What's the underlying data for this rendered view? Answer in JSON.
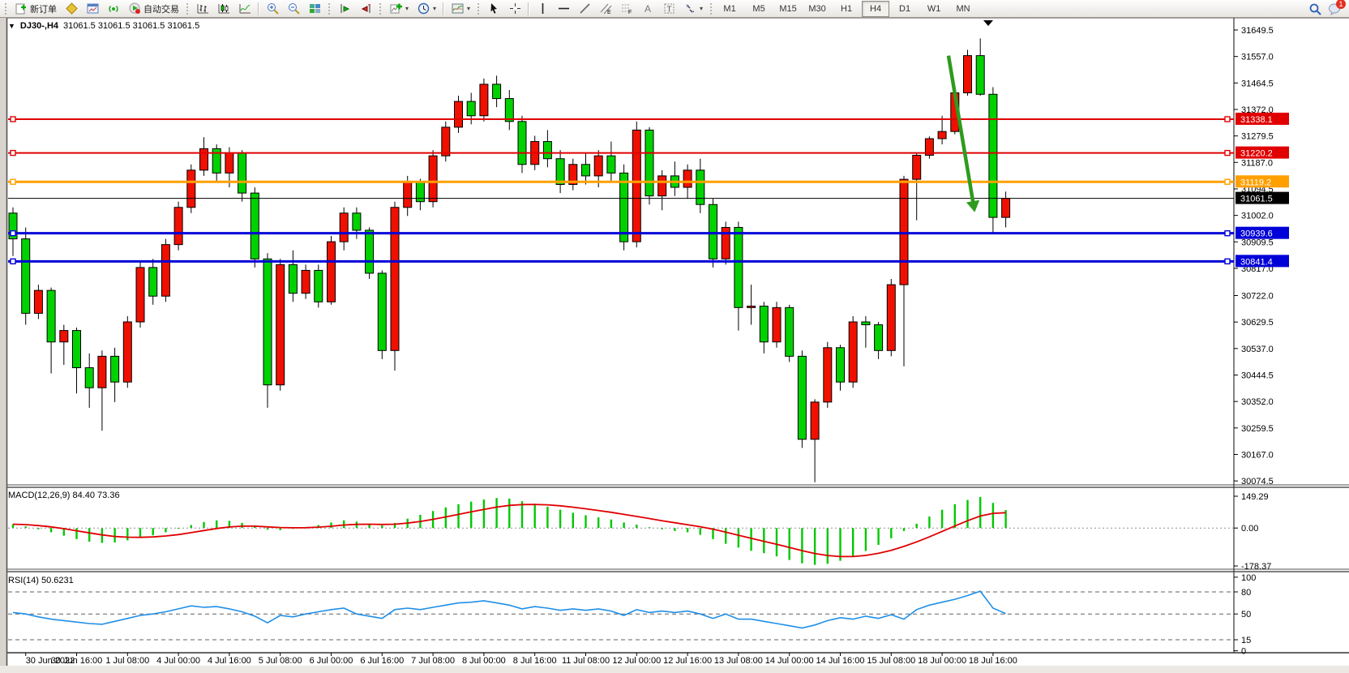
{
  "toolbar": {
    "new_order_label": "新订单",
    "auto_trading_label": "自动交易",
    "timeframes": [
      "M1",
      "M5",
      "M15",
      "M30",
      "H1",
      "H4",
      "D1",
      "W1",
      "MN"
    ],
    "active_timeframe": "H4",
    "notification_badge": "1"
  },
  "chart": {
    "symbol_title": "DJ30-,H4",
    "ohlc_readout": "31061.5 31061.5 31061.5 31061.5",
    "current_price": "31061.5",
    "price_axis_ticks": [
      "31649.5",
      "31557.0",
      "31464.5",
      "31372.0",
      "31279.5",
      "31187.0",
      "31094.5",
      "31002.0",
      "30909.5",
      "30817.0",
      "30722.0",
      "30629.5",
      "30537.0",
      "30444.5",
      "30352.0",
      "30259.5",
      "30167.0",
      "30074.5"
    ],
    "time_axis_labels": [
      "30 Jun 2022",
      "30 Jun 16:00",
      "1 Jul 08:00",
      "4 Jul 00:00",
      "4 Jul 16:00",
      "5 Jul 08:00",
      "6 Jul 00:00",
      "6 Jul 16:00",
      "7 Jul 08:00",
      "8 Jul 00:00",
      "8 Jul 16:00",
      "11 Jul 08:00",
      "12 Jul 00:00",
      "12 Jul 16:00",
      "13 Jul 08:00",
      "14 Jul 00:00",
      "14 Jul 16:00",
      "15 Jul 08:00",
      "18 Jul 00:00",
      "18 Jul 16:00"
    ],
    "horizontal_lines": [
      {
        "price": 31338.1,
        "label": "31338.1",
        "color": "#e00000",
        "width": 2
      },
      {
        "price": 31220.2,
        "label": "31220.2",
        "color": "#e00000",
        "width": 2
      },
      {
        "price": 31119.2,
        "label": "31119.2",
        "color": "#ffa000",
        "width": 3
      },
      {
        "price": 30939.6,
        "label": "30939.6",
        "color": "#0000d8",
        "width": 3
      },
      {
        "price": 30841.4,
        "label": "30841.4",
        "color": "#0000d8",
        "width": 3
      }
    ],
    "colors": {
      "up_candle": "#f01000",
      "down_candle": "#00d200",
      "macd_histogram": "#00c800",
      "macd_signal": "#e00000",
      "rsi_line": "#1f8fe8",
      "current_price_label": "#000000",
      "arrow": "#2e9b1e"
    },
    "arrow_annotation": {
      "from_bar": 73.5,
      "from_price": 31560,
      "to_bar": 75.5,
      "to_price": 31030
    }
  },
  "chart_data": {
    "type": "candlestick",
    "symbol": "DJ30-",
    "timeframe": "H4",
    "up_color": "red",
    "down_color": "green",
    "price_range": [
      30074.5,
      31649.5
    ],
    "candles": [
      [
        31010,
        31030,
        30860,
        30920
      ],
      [
        30920,
        30960,
        30620,
        30660
      ],
      [
        30660,
        30760,
        30640,
        30740
      ],
      [
        30740,
        30750,
        30450,
        30560
      ],
      [
        30560,
        30620,
        30480,
        30600
      ],
      [
        30600,
        30610,
        30380,
        30470
      ],
      [
        30470,
        30520,
        30330,
        30400
      ],
      [
        30400,
        30530,
        30250,
        30510
      ],
      [
        30510,
        30540,
        30350,
        30420
      ],
      [
        30420,
        30650,
        30400,
        30630
      ],
      [
        30630,
        30840,
        30610,
        30820
      ],
      [
        30820,
        30850,
        30690,
        30720
      ],
      [
        30720,
        30920,
        30700,
        30900
      ],
      [
        30900,
        31050,
        30880,
        31030
      ],
      [
        31030,
        31180,
        31010,
        31160
      ],
      [
        31160,
        31275,
        31140,
        31235
      ],
      [
        31235,
        31250,
        31120,
        31150
      ],
      [
        31150,
        31240,
        31100,
        31220
      ],
      [
        31220,
        31230,
        31050,
        31080
      ],
      [
        31080,
        31100,
        30820,
        30850
      ],
      [
        30850,
        30870,
        30330,
        30410
      ],
      [
        30410,
        30850,
        30390,
        30830
      ],
      [
        30830,
        30880,
        30700,
        30730
      ],
      [
        30730,
        30830,
        30710,
        30810
      ],
      [
        30810,
        30830,
        30680,
        30700
      ],
      [
        30700,
        30930,
        30690,
        30910
      ],
      [
        30910,
        31030,
        30880,
        31010
      ],
      [
        31010,
        31030,
        30920,
        30950
      ],
      [
        30950,
        30960,
        30780,
        30800
      ],
      [
        30800,
        30810,
        30500,
        30530
      ],
      [
        30530,
        31050,
        30460,
        31030
      ],
      [
        31030,
        31140,
        31000,
        31120
      ],
      [
        31120,
        31130,
        31020,
        31050
      ],
      [
        31050,
        31230,
        31030,
        31210
      ],
      [
        31210,
        31330,
        31190,
        31310
      ],
      [
        31310,
        31420,
        31290,
        31400
      ],
      [
        31400,
        31430,
        31320,
        31350
      ],
      [
        31350,
        31480,
        31330,
        31460
      ],
      [
        31460,
        31490,
        31380,
        31410
      ],
      [
        31410,
        31440,
        31300,
        31330
      ],
      [
        31330,
        31350,
        31150,
        31180
      ],
      [
        31180,
        31280,
        31160,
        31260
      ],
      [
        31260,
        31300,
        31170,
        31200
      ],
      [
        31200,
        31230,
        31080,
        31110
      ],
      [
        31110,
        31200,
        31090,
        31180
      ],
      [
        31180,
        31220,
        31110,
        31140
      ],
      [
        31140,
        31230,
        31100,
        31210
      ],
      [
        31210,
        31260,
        31120,
        31150
      ],
      [
        31150,
        31180,
        30880,
        30910
      ],
      [
        30910,
        31330,
        30890,
        31300
      ],
      [
        31300,
        31310,
        31040,
        31070
      ],
      [
        31070,
        31160,
        31020,
        31140
      ],
      [
        31140,
        31190,
        31070,
        31100
      ],
      [
        31100,
        31180,
        31060,
        31160
      ],
      [
        31160,
        31200,
        31010,
        31040
      ],
      [
        31040,
        31060,
        30820,
        30850
      ],
      [
        30850,
        30980,
        30830,
        30960
      ],
      [
        30960,
        30980,
        30600,
        30680
      ],
      [
        30680,
        30760,
        30620,
        30685
      ],
      [
        30685,
        30700,
        30520,
        30560
      ],
      [
        30560,
        30700,
        30540,
        30680
      ],
      [
        30680,
        30690,
        30490,
        30510
      ],
      [
        30510,
        30530,
        30190,
        30220
      ],
      [
        30220,
        30360,
        30070,
        30350
      ],
      [
        30350,
        30560,
        30330,
        30540
      ],
      [
        30540,
        30550,
        30390,
        30420
      ],
      [
        30420,
        30650,
        30400,
        30630
      ],
      [
        30630,
        30650,
        30540,
        30620
      ],
      [
        30620,
        30630,
        30500,
        30530
      ],
      [
        30530,
        30780,
        30510,
        30760
      ],
      [
        30760,
        31140,
        30475,
        31128
      ],
      [
        31128,
        31220,
        30985,
        31212
      ],
      [
        31212,
        31278,
        31200,
        31270
      ],
      [
        31270,
        31350,
        31250,
        31295
      ],
      [
        31295,
        31445,
        31285,
        31430
      ],
      [
        31430,
        31580,
        31420,
        31560
      ],
      [
        31560,
        31620,
        31420,
        31425
      ],
      [
        31425,
        31450,
        30940,
        30995
      ],
      [
        30995,
        31085,
        30960,
        31061.5
      ]
    ],
    "indicators": {
      "macd": {
        "label": "MACD(12,26,9) 84.40 73.36",
        "params": "12,26,9",
        "value": "84.40",
        "signal_value": "73.36",
        "scale": [
          "149.29",
          "0.00",
          "-178.37"
        ],
        "histogram": [
          18,
          8,
          -6,
          -20,
          -36,
          -52,
          -64,
          -70,
          -68,
          -58,
          -46,
          -34,
          -20,
          -4,
          14,
          28,
          36,
          34,
          24,
          8,
          -8,
          -10,
          -4,
          4,
          14,
          26,
          36,
          30,
          20,
          12,
          24,
          44,
          62,
          80,
          97,
          112,
          124,
          134,
          141,
          138,
          126,
          114,
          100,
          86,
          72,
          60,
          50,
          40,
          26,
          16,
          4,
          -6,
          -14,
          -20,
          -32,
          -52,
          -74,
          -92,
          -107,
          -118,
          -133,
          -150,
          -166,
          -173,
          -168,
          -154,
          -133,
          -108,
          -79,
          -48,
          -14,
          20,
          54,
          86,
          112,
          132,
          146,
          118,
          84.4
        ]
      },
      "rsi": {
        "label": "RSI(14) 50.6231",
        "period": "14",
        "value": "50.6231",
        "scale": [
          "100",
          "80",
          "50",
          "15",
          "0"
        ],
        "levels": [
          80,
          50,
          15
        ],
        "values": [
          52,
          50,
          46,
          43,
          41,
          39,
          37,
          36,
          40,
          44,
          48,
          50,
          53,
          57,
          61,
          59,
          60,
          57,
          53,
          47,
          38,
          48,
          46,
          50,
          53,
          56,
          58,
          50,
          47,
          44,
          56,
          58,
          56,
          59,
          62,
          65,
          66,
          68,
          65,
          62,
          57,
          60,
          58,
          55,
          57,
          55,
          57,
          54,
          48,
          56,
          52,
          54,
          52,
          54,
          50,
          44,
          50,
          43,
          43,
          40,
          37,
          34,
          31,
          35,
          41,
          45,
          43,
          47,
          44,
          49,
          43,
          56,
          62,
          66,
          70,
          75,
          81,
          58,
          50.6
        ]
      }
    }
  }
}
